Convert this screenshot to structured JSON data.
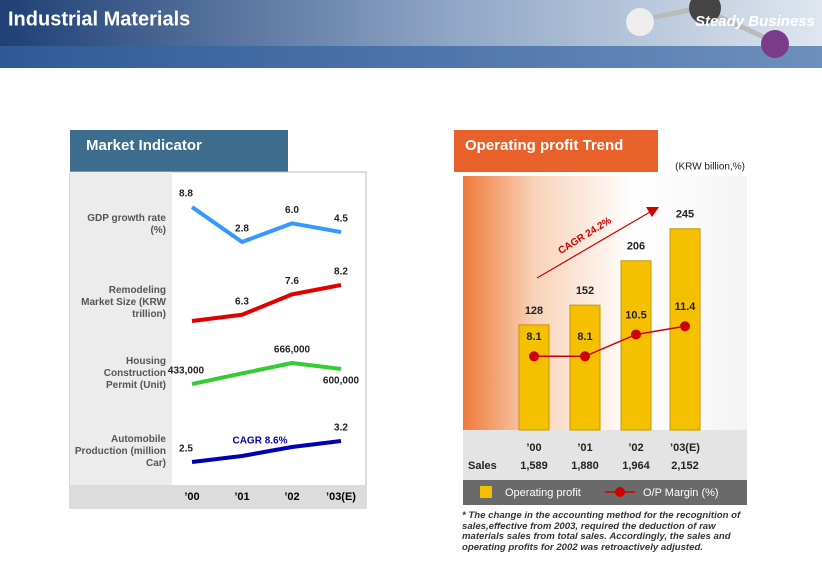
{
  "header": {
    "title": "Industrial Materials",
    "tagline": "Steady Business"
  },
  "chart_data": [
    {
      "type": "multi-line",
      "title": "Market Indicator",
      "categories": [
        "’00",
        "’01",
        "’02",
        "’03(E)"
      ],
      "series": [
        {
          "name": "GDP growth rate (%)",
          "color": "#3399ff",
          "values": [
            8.8,
            2.8,
            6.0,
            4.5
          ],
          "value_labels": [
            "8.8",
            "2.8",
            "6.0",
            "4.5"
          ]
        },
        {
          "name": "Remodeling Market Size (KRW trillion)",
          "color": "#e00000",
          "values": [
            5.9,
            6.3,
            7.6,
            8.2
          ],
          "value_labels": [
            null,
            "6.3",
            "7.6",
            "8.2"
          ]
        },
        {
          "name": "Housing Construction Permit (Unit)",
          "color": "#33cc33",
          "values": [
            433000,
            550000,
            666000,
            600000
          ],
          "value_labels": [
            "433,000",
            null,
            "666,000",
            "600,000"
          ]
        },
        {
          "name": "Automobile Production (million Car)",
          "color": "#0000b0",
          "values": [
            2.5,
            2.7,
            3.0,
            3.2
          ],
          "value_labels": [
            "2.5",
            null,
            null,
            "3.2"
          ],
          "annotation": "CAGR 8.6%"
        }
      ]
    },
    {
      "type": "bar-line",
      "title": "Operating profit Trend",
      "unit": "(KRW billion,%)",
      "categories": [
        "’00",
        "’01",
        "’02",
        "’03(E)"
      ],
      "ylim": [
        0,
        280
      ],
      "y2lim": [
        0,
        20
      ],
      "series": [
        {
          "name": "Operating profit",
          "color": "#f5c000",
          "values": [
            128,
            152,
            206,
            245
          ]
        },
        {
          "name": "O/P Margin (%)",
          "color": "#cc0000",
          "axis": "y2",
          "values": [
            8.1,
            8.1,
            10.5,
            11.4
          ]
        }
      ],
      "annotation": "CAGR 24.2%",
      "table": {
        "row_name": "Sales",
        "values": [
          1589,
          1880,
          1964,
          2152
        ],
        "value_labels": [
          "1,589",
          "1,880",
          "1,964",
          "2,152"
        ]
      }
    }
  ],
  "footnote": "* The change in the accounting method for the recognition of sales,effective from 2003, required the deduction of raw materials sales from total sales. Accordingly, the sales and operating profits for 2002 was retroactively adjusted."
}
